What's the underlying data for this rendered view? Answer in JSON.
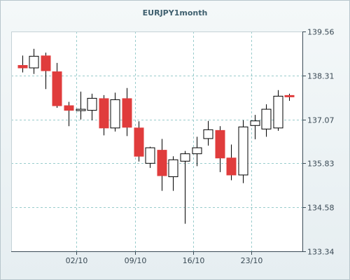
{
  "chart_data": {
    "type": "candlestick",
    "title": "EURJPY1month",
    "xlabel": "",
    "ylabel": "",
    "ylim": [
      133.34,
      139.56
    ],
    "y_ticks": [
      "139.56",
      "138.31",
      "137.07",
      "135.83",
      "134.58",
      "133.34"
    ],
    "y_tick_values": [
      139.56,
      138.31,
      137.07,
      135.83,
      134.58,
      133.34
    ],
    "x_ticks": [
      "02/10",
      "09/10",
      "16/10",
      "23/10"
    ],
    "grid": true,
    "colors": {
      "up": "#ffffff",
      "down": "#e03c3c",
      "grid": "#99cccc",
      "outline": "#000000"
    },
    "candles": [
      {
        "date": "26/09",
        "open": 138.6,
        "high": 138.88,
        "low": 138.4,
        "close": 138.53
      },
      {
        "date": "27/09",
        "open": 138.53,
        "high": 139.07,
        "low": 138.36,
        "close": 138.86
      },
      {
        "date": "28/09",
        "open": 138.87,
        "high": 138.96,
        "low": 137.93,
        "close": 138.45
      },
      {
        "date": "29/09",
        "open": 138.42,
        "high": 138.67,
        "low": 137.4,
        "close": 137.46
      },
      {
        "date": "30/09",
        "open": 137.46,
        "high": 137.57,
        "low": 136.88,
        "close": 137.33
      },
      {
        "date": "03/10",
        "open": 137.36,
        "high": 137.86,
        "low": 137.07,
        "close": 137.36
      },
      {
        "date": "04/10",
        "open": 137.33,
        "high": 137.8,
        "low": 137.05,
        "close": 137.67
      },
      {
        "date": "05/10",
        "open": 137.66,
        "high": 137.76,
        "low": 136.62,
        "close": 136.83
      },
      {
        "date": "06/10",
        "open": 136.83,
        "high": 137.83,
        "low": 136.73,
        "close": 137.63
      },
      {
        "date": "07/10",
        "open": 137.66,
        "high": 137.96,
        "low": 136.6,
        "close": 136.85
      },
      {
        "date": "10/10",
        "open": 136.83,
        "high": 137.02,
        "low": 135.88,
        "close": 136.03
      },
      {
        "date": "11/10",
        "open": 135.83,
        "high": 136.3,
        "low": 135.7,
        "close": 136.27
      },
      {
        "date": "12/10",
        "open": 136.2,
        "high": 136.52,
        "low": 135.05,
        "close": 135.48
      },
      {
        "date": "13/10",
        "open": 135.45,
        "high": 136.03,
        "low": 135.05,
        "close": 135.93
      },
      {
        "date": "14/10",
        "open": 135.89,
        "high": 136.18,
        "low": 134.12,
        "close": 136.1
      },
      {
        "date": "17/10",
        "open": 136.1,
        "high": 136.58,
        "low": 135.75,
        "close": 136.27
      },
      {
        "date": "18/10",
        "open": 136.53,
        "high": 137.03,
        "low": 136.33,
        "close": 136.78
      },
      {
        "date": "19/10",
        "open": 136.76,
        "high": 136.88,
        "low": 135.58,
        "close": 135.98
      },
      {
        "date": "20/10",
        "open": 135.98,
        "high": 136.36,
        "low": 135.35,
        "close": 135.5
      },
      {
        "date": "21/10",
        "open": 135.5,
        "high": 137.05,
        "low": 135.27,
        "close": 136.86
      },
      {
        "date": "24/10",
        "open": 136.9,
        "high": 137.2,
        "low": 136.51,
        "close": 137.03
      },
      {
        "date": "25/10",
        "open": 136.8,
        "high": 137.5,
        "low": 136.58,
        "close": 137.36
      },
      {
        "date": "26/10",
        "open": 136.83,
        "high": 137.9,
        "low": 136.75,
        "close": 137.73
      },
      {
        "date": "27/10",
        "open": 137.75,
        "high": 137.8,
        "low": 137.6,
        "close": 137.73
      }
    ]
  }
}
